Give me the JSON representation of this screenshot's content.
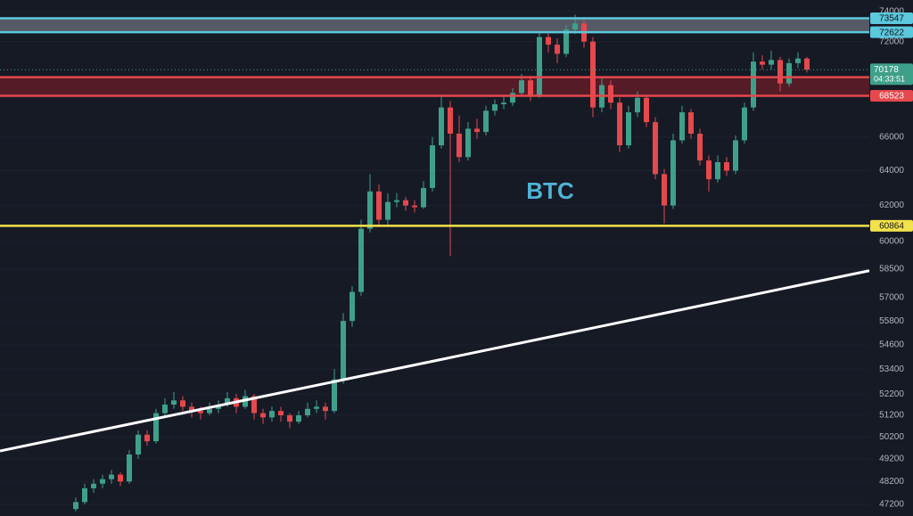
{
  "chart_data": {
    "type": "candlestick",
    "title": "BTC",
    "log_scale": true,
    "grid": true,
    "up_color": "#3fa08a",
    "down_color": "#e5484d",
    "ylim": [
      46704,
      74786
    ],
    "yticks": [
      74000,
      72000,
      66000,
      64000,
      62000,
      60000,
      58500,
      57000,
      55800,
      54600,
      53400,
      52200,
      51200,
      50200,
      49200,
      48200,
      47200
    ],
    "candles": [
      [
        47000,
        47500,
        46900,
        47300
      ],
      [
        47300,
        48100,
        47200,
        47900
      ],
      [
        47900,
        48300,
        47700,
        48100
      ],
      [
        48100,
        48500,
        47900,
        48300
      ],
      [
        48300,
        48700,
        48100,
        48500
      ],
      [
        48500,
        48600,
        48000,
        48200
      ],
      [
        48200,
        49600,
        48100,
        49400
      ],
      [
        49400,
        50500,
        49200,
        50300
      ],
      [
        50300,
        50500,
        49800,
        50000
      ],
      [
        50000,
        51500,
        49900,
        51300
      ],
      [
        51300,
        52000,
        51100,
        51700
      ],
      [
        51700,
        52300,
        51500,
        51900
      ],
      [
        51900,
        52100,
        51400,
        51600
      ],
      [
        51600,
        51800,
        51100,
        51400
      ],
      [
        51400,
        51600,
        51000,
        51300
      ],
      [
        51300,
        51800,
        51200,
        51500
      ],
      [
        51500,
        51900,
        51300,
        51700
      ],
      [
        51700,
        52300,
        51600,
        52000
      ],
      [
        52000,
        52200,
        51300,
        51600
      ],
      [
        51600,
        52400,
        51500,
        52100
      ],
      [
        52100,
        52200,
        51000,
        51300
      ],
      [
        51300,
        51500,
        50800,
        51100
      ],
      [
        51100,
        51600,
        50900,
        51400
      ],
      [
        51400,
        51600,
        50900,
        51200
      ],
      [
        51200,
        51300,
        50600,
        50900
      ],
      [
        50900,
        51400,
        50800,
        51200
      ],
      [
        51200,
        51800,
        51100,
        51500
      ],
      [
        51500,
        51900,
        51300,
        51600
      ],
      [
        51600,
        51800,
        51000,
        51400
      ],
      [
        51400,
        53400,
        51300,
        52900
      ],
      [
        52900,
        56200,
        52700,
        55800
      ],
      [
        55800,
        57600,
        55500,
        57300
      ],
      [
        57300,
        61200,
        57100,
        60700
      ],
      [
        60700,
        63800,
        60500,
        62800
      ],
      [
        62800,
        63200,
        60800,
        61200
      ],
      [
        61200,
        62700,
        60900,
        62200
      ],
      [
        62200,
        62700,
        61900,
        62300
      ],
      [
        62300,
        62500,
        61700,
        62000
      ],
      [
        62000,
        62300,
        61600,
        61900
      ],
      [
        61900,
        63400,
        61800,
        63000
      ],
      [
        63000,
        66000,
        62800,
        65500
      ],
      [
        65500,
        68600,
        65300,
        67800
      ],
      [
        67800,
        68200,
        59200,
        66200
      ],
      [
        66200,
        67300,
        64500,
        64800
      ],
      [
        64800,
        66900,
        64600,
        66500
      ],
      [
        66500,
        67100,
        65900,
        66300
      ],
      [
        66300,
        67900,
        66100,
        67600
      ],
      [
        67600,
        68300,
        67300,
        68000
      ],
      [
        68000,
        68500,
        67700,
        68100
      ],
      [
        68100,
        69000,
        67900,
        68700
      ],
      [
        68700,
        69900,
        68500,
        69500
      ],
      [
        69500,
        69800,
        68200,
        68500
      ],
      [
        68500,
        72700,
        68400,
        72300
      ],
      [
        72300,
        72600,
        71300,
        71800
      ],
      [
        71800,
        72200,
        70600,
        71200
      ],
      [
        71200,
        73100,
        71000,
        72800
      ],
      [
        72800,
        73800,
        72500,
        73200
      ],
      [
        73200,
        73500,
        71600,
        72000
      ],
      [
        72000,
        72300,
        67200,
        67800
      ],
      [
        67800,
        69700,
        67500,
        69200
      ],
      [
        69200,
        69500,
        67700,
        68100
      ],
      [
        68100,
        68400,
        65100,
        65500
      ],
      [
        65500,
        67900,
        65300,
        67500
      ],
      [
        67500,
        68800,
        67200,
        68400
      ],
      [
        68400,
        68600,
        66600,
        66900
      ],
      [
        66900,
        67200,
        63500,
        63800
      ],
      [
        63800,
        64100,
        61000,
        62000
      ],
      [
        62000,
        66200,
        61800,
        65800
      ],
      [
        65800,
        67900,
        65600,
        67500
      ],
      [
        67500,
        67700,
        65900,
        66200
      ],
      [
        66200,
        66500,
        64300,
        64600
      ],
      [
        64600,
        64900,
        62800,
        63500
      ],
      [
        63500,
        64900,
        63300,
        64500
      ],
      [
        64500,
        64800,
        63700,
        64000
      ],
      [
        64000,
        66100,
        63800,
        65800
      ],
      [
        65800,
        68100,
        65600,
        67800
      ],
      [
        67800,
        71300,
        67600,
        70700
      ],
      [
        70700,
        71100,
        70200,
        70500
      ],
      [
        70500,
        71400,
        70200,
        70800
      ],
      [
        70800,
        71000,
        68800,
        69300
      ],
      [
        69300,
        70900,
        69100,
        70600
      ],
      [
        70600,
        71300,
        70300,
        70900
      ],
      [
        70900,
        71000,
        70000,
        70178
      ]
    ],
    "zones": [
      {
        "levels": [
          0,
          1
        ],
        "color": "#8a8f9c"
      },
      {
        "levels": [
          2,
          3
        ],
        "color": "#8b1e2a"
      }
    ],
    "levels": [
      {
        "value": 73547,
        "color": "#5bc8dc"
      },
      {
        "value": 72622,
        "color": "#5bc8dc"
      },
      {
        "value": 69700,
        "color": "#e5484d"
      },
      {
        "value": 68523,
        "color": "#e5484d"
      },
      {
        "value": 60864,
        "color": "#f2e24b"
      }
    ],
    "last_price": {
      "value": 70178,
      "timer": "04:33:51",
      "color": "#3fa08a"
    },
    "trendline": {
      "values": [
        49560,
        58420
      ],
      "color": "#ffffff"
    }
  }
}
